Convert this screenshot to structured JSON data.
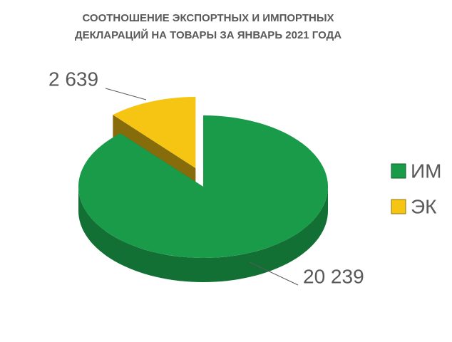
{
  "chart_data": {
    "type": "pie",
    "title": "СООТНОШЕНИЕ ЭКСПОРТНЫХ И ИМПОРТНЫХ ДЕКЛАРАЦИЙ НА ТОВАРЫ ЗА ЯНВАРЬ 2021 ГОДА",
    "categories": [
      "ИМ",
      "ЭК"
    ],
    "values": [
      20239,
      2639
    ],
    "value_labels": [
      "20 239",
      "2 639"
    ],
    "colors": [
      "#1a9b4a",
      "#f6c514"
    ],
    "legend": "right"
  }
}
